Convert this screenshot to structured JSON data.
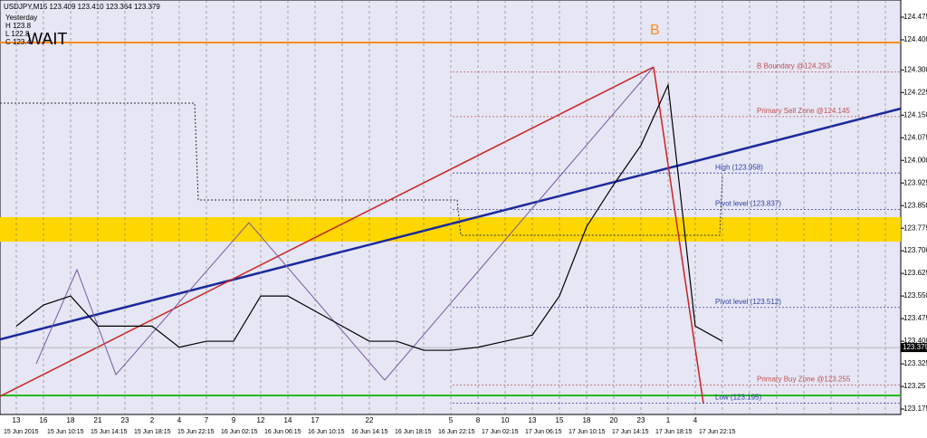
{
  "chart_data": {
    "type": "line",
    "header": "USDJPY,M15  123.409 123.410 123.364 123.379",
    "signal": "WAIT",
    "info": [
      "Yesterday",
      "H 123.8",
      "L 122.8",
      "C 123.4"
    ],
    "marker": "B",
    "current_price": {
      "value": 123.379,
      "label": "123.379"
    },
    "categories": [
      "13",
      "16",
      "18",
      "21",
      "23",
      "2",
      "4",
      "7",
      "9",
      "12",
      "14",
      "17",
      null,
      "22",
      null,
      null,
      "5",
      "8",
      "10",
      "13",
      "15",
      "18",
      "20",
      "23",
      "1",
      "4",
      null,
      null,
      null,
      null,
      null,
      null,
      null
    ],
    "date_labels": [
      "15 Jun 2015",
      "15 Jun 10:15",
      "15 Jun 14:15",
      "15 Jun 18:15",
      "15 Jun 22:15",
      "16 Jun 02:15",
      "16 Jun 06:15",
      "16 Jun 10:15",
      "16 Jun 14:15",
      "16 Jun 18:15",
      "16 Jun 22:15",
      "17 Jun 02:15",
      "17 Jun 06:15",
      "17 Jun 10:15",
      "17 Jun 14:15",
      "17 Jun 18:15",
      "17 Jun 22:15"
    ],
    "series": [
      {
        "name": "USDJPY",
        "color": "#000000",
        "values": [
          123.45,
          123.52,
          123.55,
          123.45,
          123.45,
          123.45,
          123.38,
          123.4,
          123.4,
          123.55,
          123.55,
          123.5,
          123.45,
          123.4,
          123.4,
          123.37,
          123.37,
          123.38,
          123.4,
          123.42,
          123.55,
          123.78,
          123.92,
          124.05,
          124.25,
          123.45,
          123.4,
          null,
          null,
          null,
          null,
          null,
          null
        ]
      }
    ],
    "levels": [
      {
        "label": "B Boundary @124.293",
        "value": 124.293,
        "color": "#c05050"
      },
      {
        "label": "Primary Sell Zone @124.145",
        "value": 124.145,
        "color": "#c05050"
      },
      {
        "label": "High (123.958)",
        "value": 123.958,
        "color": "#3040a0"
      },
      {
        "label": "Pivot level (123.837)",
        "value": 123.837,
        "color": "#3040a0"
      },
      {
        "label": "Pivot level (123.512)",
        "value": 123.512,
        "color": "#3040a0"
      },
      {
        "label": "Primary Buy Zone @123.255",
        "value": 123.255,
        "color": "#c05050"
      },
      {
        "label": "Low (123.195)",
        "value": 123.195,
        "color": "#3040a0"
      }
    ],
    "ylim": [
      123.157,
      124.532
    ],
    "yticks": [
      123.175,
      123.25,
      123.325,
      {
        "value": 123.4,
        "label": "123.400"
      },
      123.475,
      {
        "value": 123.55,
        "label": "123.550"
      },
      123.625,
      {
        "value": 123.7,
        "label": "123.700"
      },
      123.775,
      {
        "value": 123.85,
        "label": "123.850"
      },
      123.925,
      {
        "value": 124,
        "label": "124.000"
      },
      124.075,
      {
        "value": 124.15,
        "label": "124.150"
      },
      124.225,
      {
        "value": 124.3,
        "label": "124.300"
      },
      {
        "value": 124.4,
        "label": "124.400"
      },
      124.475
    ],
    "grid": true
  }
}
